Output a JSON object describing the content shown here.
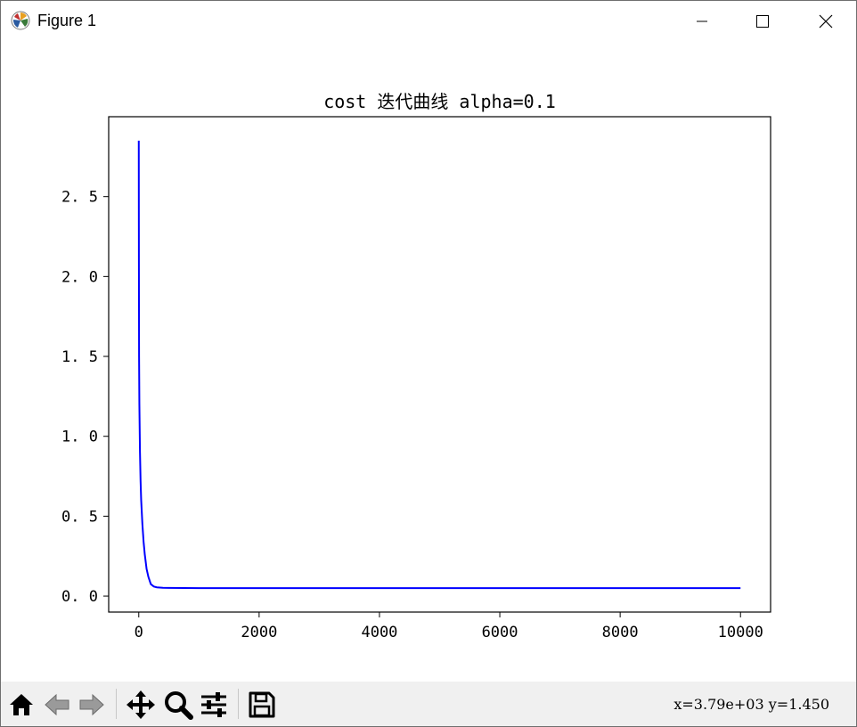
{
  "window": {
    "title": "Figure 1",
    "icons": [
      "matplotlib-icon",
      "minimize-icon",
      "maximize-icon",
      "close-icon"
    ]
  },
  "toolbar": {
    "buttons": [
      "home-icon",
      "back-icon",
      "forward-icon",
      "pan-icon",
      "zoom-icon",
      "configure-subplots-icon",
      "save-icon"
    ],
    "coords": "x=3.79e+03 y=1.450"
  },
  "chart_data": {
    "type": "line",
    "title": "cost 迭代曲线   alpha=0.1",
    "xlabel": "",
    "ylabel": "",
    "xlim": [
      -500,
      10500
    ],
    "ylim": [
      -0.1,
      3.0
    ],
    "xticks": [
      0,
      2000,
      4000,
      6000,
      8000,
      10000
    ],
    "yticks": [
      0.0,
      0.5,
      1.0,
      1.5,
      2.0,
      2.5
    ],
    "xtick_labels": [
      "0",
      "2000",
      "4000",
      "6000",
      "8000",
      "10000"
    ],
    "ytick_labels": [
      "0. 0",
      "0. 5",
      "1. 0",
      "1. 5",
      "2. 0",
      "2. 5"
    ],
    "grid": false,
    "series": [
      {
        "color": "#0000ff",
        "x": [
          0,
          2,
          5,
          10,
          20,
          30,
          40,
          60,
          80,
          100,
          130,
          160,
          200,
          250,
          300,
          400,
          500,
          1000,
          2000,
          4000,
          6000,
          8000,
          10000
        ],
        "y": [
          2.85,
          2.1,
          1.5,
          1.2,
          0.9,
          0.72,
          0.6,
          0.45,
          0.34,
          0.26,
          0.17,
          0.12,
          0.075,
          0.06,
          0.055,
          0.052,
          0.051,
          0.05,
          0.05,
          0.05,
          0.05,
          0.05,
          0.05
        ]
      }
    ]
  }
}
